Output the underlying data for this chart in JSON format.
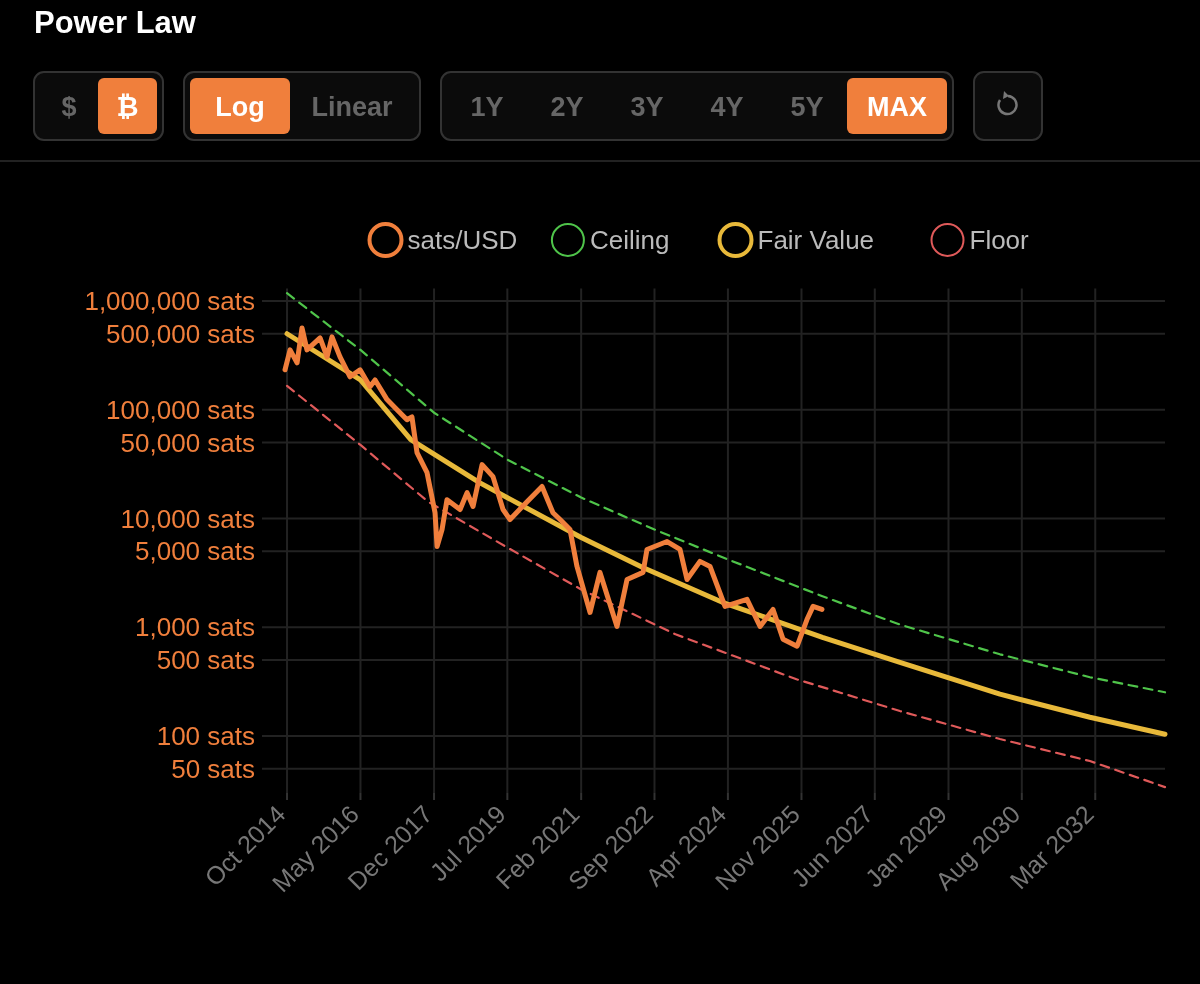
{
  "chart_data": {
    "type": "line",
    "title": "Power Law",
    "annotations": [
      "$",
      "₿",
      "Log",
      "Linear",
      "1Y",
      "2Y",
      "3Y",
      "4Y",
      "5Y",
      "MAX"
    ],
    "log": "y",
    "grid": true,
    "legend": "top",
    "xlim": [
      "2014-03-18",
      "2033-09-01"
    ],
    "xticks": [
      {
        "value": "2014-10-01",
        "label": "Oct 2014"
      },
      {
        "value": "2016-05-01",
        "label": "May 2016"
      },
      {
        "value": "2017-12-01",
        "label": "Dec 2017"
      },
      {
        "value": "2019-07-01",
        "label": "Jul 2019"
      },
      {
        "value": "2021-02-01",
        "label": "Feb 2021"
      },
      {
        "value": "2022-09-01",
        "label": "Sep 2022"
      },
      {
        "value": "2024-04-01",
        "label": "Apr 2024"
      },
      {
        "value": "2025-11-01",
        "label": "Nov 2025"
      },
      {
        "value": "2027-06-01",
        "label": "Jun 2027"
      },
      {
        "value": "2029-01-01",
        "label": "Jan 2029"
      },
      {
        "value": "2030-08-01",
        "label": "Aug 2030"
      },
      {
        "value": "2032-03-01",
        "label": "Mar 2032"
      }
    ],
    "ylim": [
      30,
      1300000
    ],
    "yticks": [
      {
        "value": 1000000,
        "label": "1,000,000 sats"
      },
      {
        "value": 500000,
        "label": "500,000 sats"
      },
      {
        "value": 100000,
        "label": "100,000 sats"
      },
      {
        "value": 50000,
        "label": "50,000 sats"
      },
      {
        "value": 10000,
        "label": "10,000 sats"
      },
      {
        "value": 5000,
        "label": "5,000 sats"
      },
      {
        "value": 1000,
        "label": "1,000 sats"
      },
      {
        "value": 500,
        "label": "500 sats"
      },
      {
        "value": 100,
        "label": "100 sats"
      },
      {
        "value": 50,
        "label": "50 sats"
      }
    ],
    "series": [
      {
        "name": "sats/USD",
        "color": "#f07f3c",
        "line_style": "solid",
        "x": [
          "2014-09-15",
          "2014-10-25",
          "2014-12-19",
          "2015-01-27",
          "2015-03-07",
          "2015-06-18",
          "2015-08-12",
          "2015-09-20",
          "2015-11-22",
          "2016-02-09",
          "2016-04-28",
          "2016-07-15",
          "2016-08-24",
          "2016-11-26",
          "2017-02-13",
          "2017-05-02",
          "2017-06-10",
          "2017-07-20",
          "2017-10-07",
          "2017-12-09",
          "2017-12-25",
          "2018-02-02",
          "2018-03-13",
          "2018-06-24",
          "2018-08-18",
          "2018-10-04",
          "2018-12-14",
          "2019-03-10",
          "2019-05-28",
          "2019-07-22",
          "2019-12-03",
          "2020-03-30",
          "2020-06-24",
          "2020-08-19",
          "2020-11-05",
          "2020-12-30",
          "2021-04-12",
          "2021-06-29",
          "2021-11-10",
          "2022-01-28",
          "2022-06-03",
          "2022-07-04",
          "2022-12-09",
          "2023-03-21",
          "2023-05-15",
          "2023-08-25",
          "2023-11-12",
          "2024-03-09",
          "2024-08-29",
          "2024-12-10",
          "2025-03-22",
          "2025-06-09",
          "2025-09-27",
          "2025-12-14",
          "2026-01-31",
          "2026-04-11"
        ],
        "values": [
          233000,
          355000,
          270000,
          565000,
          355000,
          458000,
          306000,
          468000,
          306000,
          201000,
          233000,
          163000,
          188000,
          124000,
          100000,
          81000,
          86000,
          40300,
          26400,
          11300,
          5530,
          7930,
          14900,
          12100,
          17300,
          12900,
          31300,
          24300,
          12100,
          9790,
          14300,
          19700,
          11300,
          9790,
          7930,
          3630,
          1370,
          3200,
          1020,
          2750,
          3200,
          5200,
          6150,
          5200,
          2750,
          4040,
          3630,
          1560,
          1810,
          1020,
          1460,
          776,
          670,
          1180,
          1560,
          1460
        ]
      },
      {
        "name": "Ceiling",
        "color": "#4fc44a",
        "line_style": "dashed",
        "x": [
          "2014-10-01",
          "2016-05-01",
          "2017-12-01",
          "2019-07-01",
          "2021-02-01",
          "2022-09-01",
          "2024-04-01",
          "2026-04-15",
          "2027-12-16",
          "2030-02-10",
          "2032-01-19",
          "2033-09-01"
        ],
        "values": [
          1180000,
          355000,
          94000,
          34800,
          15600,
          7930,
          4210,
          1930,
          1060,
          565,
          348,
          253
        ]
      },
      {
        "name": "Fair Value",
        "color": "#e8b93a",
        "line_style": "solid",
        "x": [
          "2014-10-01",
          "2016-05-01",
          "2017-06-01",
          "2018-11-24",
          "2021-02-01",
          "2022-06-01",
          "2024-02-22",
          "2026-04-15",
          "2027-12-16",
          "2030-02-10",
          "2032-01-19",
          "2033-09-01"
        ],
        "values": [
          500000,
          188000,
          53100,
          21400,
          6700,
          3550,
          1690,
          809,
          477,
          243,
          149,
          104
        ]
      },
      {
        "name": "Floor",
        "color": "#e05a5a",
        "line_style": "dashed",
        "x": [
          "2014-10-01",
          "2016-05-01",
          "2017-10-15",
          "2019-07-01",
          "2021-02-01",
          "2023-02-13",
          "2025-09-23",
          "2026-04-15",
          "2027-12-16",
          "2030-02-10",
          "2032-01-19",
          "2033-09-01"
        ],
        "values": [
          166000,
          47500,
          14300,
          5420,
          2230,
          863,
          333,
          282,
          170,
          94,
          59,
          34
        ]
      }
    ]
  }
}
